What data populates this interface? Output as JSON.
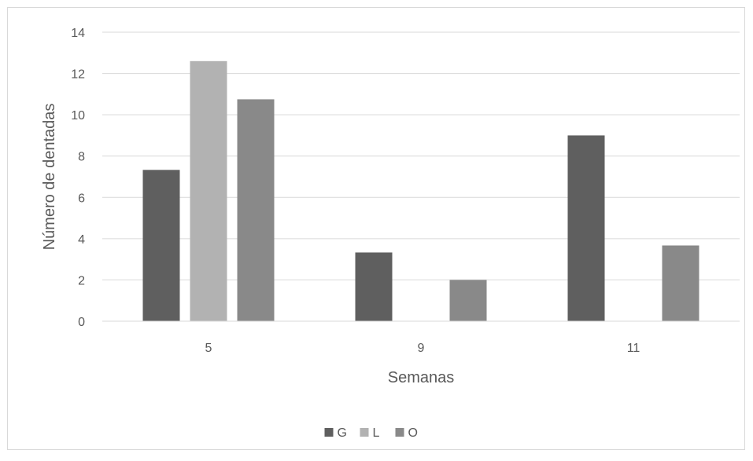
{
  "chart_data": {
    "type": "bar",
    "title": "",
    "xlabel": "Semanas",
    "ylabel": "Número de dentadas",
    "categories": [
      "5",
      "9",
      "11"
    ],
    "series": [
      {
        "name": "G",
        "color": "#5f5f5f",
        "values": [
          7.33,
          3.33,
          9.0
        ]
      },
      {
        "name": "L",
        "color": "#b2b2b2",
        "values": [
          12.6,
          0,
          0
        ]
      },
      {
        "name": "O",
        "color": "#898989",
        "values": [
          10.75,
          2.0,
          3.67
        ]
      }
    ],
    "ylim": [
      0,
      14
    ],
    "yticks": [
      "0",
      "2",
      "4",
      "6",
      "8",
      "10",
      "12",
      "14"
    ],
    "grid": true,
    "legend_position": "bottom"
  }
}
